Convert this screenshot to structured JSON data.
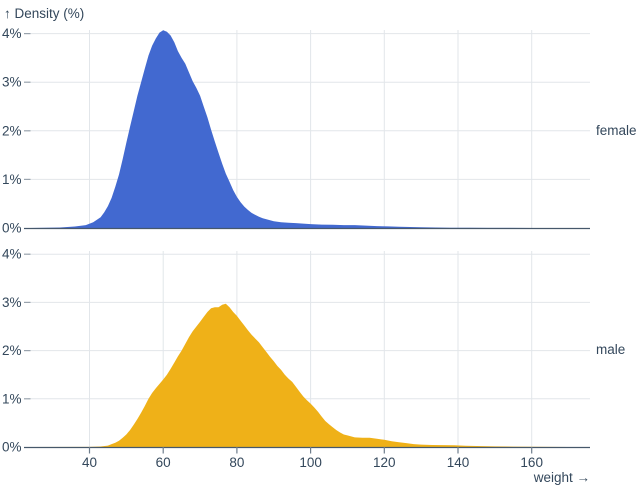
{
  "colors": {
    "female_fill": "#4269d0",
    "male_fill": "#efb118",
    "gridline": "#e2e6ea",
    "baseline": "#46586b",
    "tick_dash": "#99a3ad",
    "x_tick_mark": "#6e7d8c",
    "text": "#33475b",
    "background": "#ffffff"
  },
  "chart_data": {
    "type": "area",
    "title": "↑ Density (%)",
    "xlabel": "weight →",
    "ylabel": "Density (%)",
    "grid": true,
    "legend_position": "right-facet-labels",
    "xlim": [
      23.3,
      175.8
    ],
    "ylim": [
      0,
      4.07
    ],
    "x_ticks": [
      40,
      60,
      80,
      100,
      120,
      140,
      160
    ],
    "y_tick_labels": [
      "0%",
      "1%",
      "2%",
      "3%",
      "4%"
    ],
    "y_tick_values": [
      0,
      1,
      2,
      3,
      4
    ],
    "facets": [
      {
        "label": "female",
        "color": "#4269d0",
        "peak": {
          "weight": 60,
          "density_pct": 4.07
        },
        "points": [
          [
            24,
            0
          ],
          [
            32,
            0.01
          ],
          [
            36,
            0.03
          ],
          [
            39,
            0.06
          ],
          [
            41,
            0.12
          ],
          [
            43,
            0.22
          ],
          [
            44,
            0.32
          ],
          [
            45,
            0.45
          ],
          [
            46,
            0.62
          ],
          [
            47,
            0.85
          ],
          [
            48,
            1.1
          ],
          [
            49,
            1.42
          ],
          [
            50,
            1.75
          ],
          [
            51,
            2.08
          ],
          [
            52,
            2.4
          ],
          [
            53,
            2.72
          ],
          [
            54,
            3.0
          ],
          [
            55,
            3.28
          ],
          [
            56,
            3.55
          ],
          [
            57,
            3.75
          ],
          [
            58,
            3.9
          ],
          [
            59,
            4.02
          ],
          [
            60,
            4.07
          ],
          [
            61,
            4.04
          ],
          [
            62,
            3.96
          ],
          [
            63,
            3.82
          ],
          [
            64,
            3.64
          ],
          [
            65,
            3.5
          ],
          [
            66,
            3.38
          ],
          [
            67,
            3.2
          ],
          [
            68,
            3.02
          ],
          [
            69,
            2.88
          ],
          [
            70,
            2.72
          ],
          [
            71,
            2.5
          ],
          [
            72,
            2.28
          ],
          [
            73,
            2.02
          ],
          [
            74,
            1.78
          ],
          [
            75,
            1.55
          ],
          [
            76,
            1.32
          ],
          [
            77,
            1.12
          ],
          [
            78,
            0.95
          ],
          [
            79,
            0.78
          ],
          [
            80,
            0.64
          ],
          [
            81,
            0.53
          ],
          [
            82,
            0.44
          ],
          [
            83,
            0.37
          ],
          [
            84,
            0.31
          ],
          [
            85,
            0.27
          ],
          [
            86,
            0.23
          ],
          [
            87,
            0.2
          ],
          [
            88,
            0.18
          ],
          [
            90,
            0.14
          ],
          [
            92,
            0.12
          ],
          [
            94,
            0.11
          ],
          [
            96,
            0.1
          ],
          [
            98,
            0.09
          ],
          [
            100,
            0.08
          ],
          [
            103,
            0.07
          ],
          [
            106,
            0.065
          ],
          [
            109,
            0.06
          ],
          [
            112,
            0.06
          ],
          [
            115,
            0.05
          ],
          [
            118,
            0.04
          ],
          [
            121,
            0.033
          ],
          [
            124,
            0.025
          ],
          [
            127,
            0.02
          ],
          [
            130,
            0.015
          ],
          [
            134,
            0.01
          ],
          [
            138,
            0.007
          ],
          [
            143,
            0.005
          ],
          [
            148,
            0.003
          ],
          [
            154,
            0.002
          ],
          [
            160,
            0.001
          ],
          [
            168,
            0
          ],
          [
            175.8,
            0
          ]
        ]
      },
      {
        "label": "male",
        "color": "#efb118",
        "peak": {
          "weight": 77,
          "density_pct": 2.97
        },
        "points": [
          [
            24,
            0
          ],
          [
            40,
            0.002
          ],
          [
            43,
            0.01
          ],
          [
            45,
            0.03
          ],
          [
            46,
            0.06
          ],
          [
            47,
            0.09
          ],
          [
            48,
            0.13
          ],
          [
            49,
            0.19
          ],
          [
            50,
            0.26
          ],
          [
            51,
            0.35
          ],
          [
            52,
            0.46
          ],
          [
            53,
            0.58
          ],
          [
            54,
            0.71
          ],
          [
            55,
            0.85
          ],
          [
            56,
            1.0
          ],
          [
            57,
            1.12
          ],
          [
            58,
            1.22
          ],
          [
            59,
            1.31
          ],
          [
            60,
            1.4
          ],
          [
            61,
            1.5
          ],
          [
            62,
            1.62
          ],
          [
            63,
            1.75
          ],
          [
            64,
            1.88
          ],
          [
            65,
            2.0
          ],
          [
            66,
            2.14
          ],
          [
            67,
            2.28
          ],
          [
            68,
            2.4
          ],
          [
            69,
            2.5
          ],
          [
            70,
            2.6
          ],
          [
            71,
            2.7
          ],
          [
            72,
            2.8
          ],
          [
            73,
            2.88
          ],
          [
            74,
            2.9
          ],
          [
            75,
            2.9
          ],
          [
            76,
            2.95
          ],
          [
            77,
            2.97
          ],
          [
            78,
            2.9
          ],
          [
            79,
            2.8
          ],
          [
            80,
            2.72
          ],
          [
            81,
            2.62
          ],
          [
            82,
            2.52
          ],
          [
            83,
            2.42
          ],
          [
            84,
            2.33
          ],
          [
            85,
            2.25
          ],
          [
            86,
            2.17
          ],
          [
            87,
            2.07
          ],
          [
            88,
            1.97
          ],
          [
            89,
            1.87
          ],
          [
            90,
            1.78
          ],
          [
            91,
            1.68
          ],
          [
            92,
            1.6
          ],
          [
            93,
            1.5
          ],
          [
            94,
            1.42
          ],
          [
            95,
            1.35
          ],
          [
            96,
            1.25
          ],
          [
            97,
            1.15
          ],
          [
            98,
            1.05
          ],
          [
            99,
            0.97
          ],
          [
            100,
            0.9
          ],
          [
            101,
            0.82
          ],
          [
            102,
            0.73
          ],
          [
            103,
            0.63
          ],
          [
            104,
            0.54
          ],
          [
            105,
            0.47
          ],
          [
            106,
            0.41
          ],
          [
            107,
            0.35
          ],
          [
            108,
            0.3
          ],
          [
            109,
            0.26
          ],
          [
            110,
            0.24
          ],
          [
            112,
            0.2
          ],
          [
            114,
            0.19
          ],
          [
            116,
            0.19
          ],
          [
            118,
            0.17
          ],
          [
            120,
            0.15
          ],
          [
            122,
            0.12
          ],
          [
            124,
            0.1
          ],
          [
            126,
            0.08
          ],
          [
            128,
            0.06
          ],
          [
            130,
            0.05
          ],
          [
            133,
            0.042
          ],
          [
            136,
            0.04
          ],
          [
            139,
            0.035
          ],
          [
            142,
            0.027
          ],
          [
            145,
            0.02
          ],
          [
            150,
            0.013
          ],
          [
            155,
            0.008
          ],
          [
            160,
            0.005
          ],
          [
            165,
            0.002
          ],
          [
            170,
            0.001
          ],
          [
            175.8,
            0
          ]
        ]
      }
    ]
  }
}
